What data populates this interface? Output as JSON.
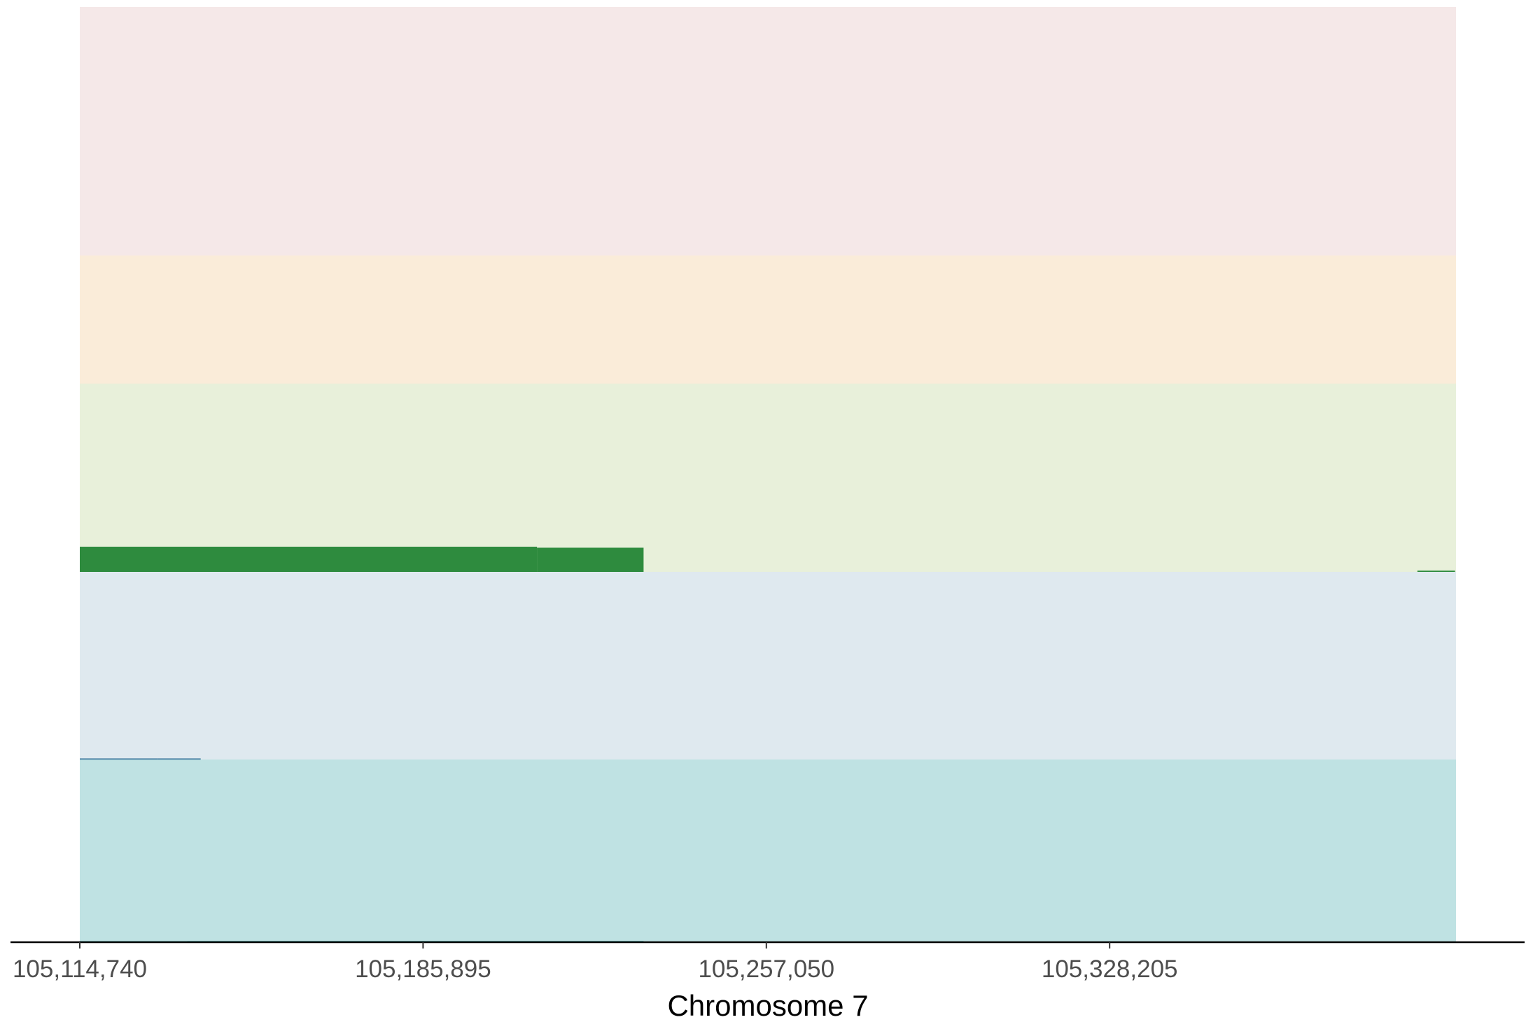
{
  "chart_data": {
    "type": "area",
    "title": "",
    "xlabel": "Chromosome 7",
    "ylabel": "",
    "xlim": [
      105114740,
      105400000
    ],
    "x_ticks": [
      "105,114,740",
      "105,185,895",
      "105,257,050",
      "105,328,205"
    ],
    "x_tick_values": [
      105114740,
      105185895,
      105257050,
      105328205
    ],
    "grid": false,
    "legend": "none",
    "bands": [
      {
        "color": "#f5e8e8",
        "values": []
      },
      {
        "color": "#faecd9",
        "values": []
      },
      {
        "color": "#e8f0da",
        "values": [
          {
            "x0": 105114740,
            "x1": 105209500,
            "level": 1.0
          },
          {
            "x0": 105209500,
            "x1": 105231600,
            "level": 0.96
          },
          {
            "x0": 105392000,
            "x1": 105399800,
            "level": 0.05
          }
        ],
        "fill": "#2e8b3e"
      },
      {
        "color": "#dfe9ef",
        "values": [
          {
            "x0": 105114740,
            "x1": 105130900,
            "level": 0.03
          },
          {
            "x0": 105130900,
            "x1": 105139800,
            "level": 0.02
          }
        ],
        "fill": "#2b6a94"
      },
      {
        "color": "#bfe2e3",
        "values": [
          {
            "x0": 105114740,
            "x1": 105121500,
            "level": 0.02
          },
          {
            "x0": 105114740,
            "x1": 105137000,
            "level": 0.015
          },
          {
            "x0": 105137000,
            "x1": 105231600,
            "level": 0.045
          }
        ],
        "fill": "#1f9a94"
      }
    ]
  }
}
